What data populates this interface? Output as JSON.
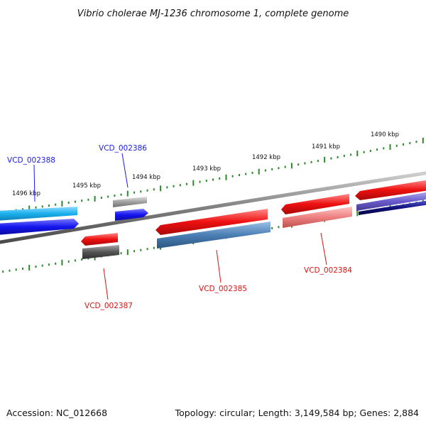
{
  "title": "Vibrio cholerae MJ-1236 chromosome 1, complete genome",
  "footer": {
    "accession": "Accession: NC_012668",
    "summary": "Topology: circular; Length: 3,149,584 bp; Genes: 2,884"
  },
  "ticks": {
    "outer": [
      "1496 kbp",
      "1495 kbp",
      "1494 kbp",
      "1493 kbp",
      "1492 kbp",
      "1491 kbp",
      "1490 kbp"
    ]
  },
  "genes": {
    "forward": [
      {
        "label": "VCD_002388",
        "color": "#1a1aee"
      },
      {
        "label": "VCD_002386",
        "color": "#1a1aee"
      }
    ],
    "reverse": [
      {
        "label": "VCD_002387",
        "color": "#dd1111"
      },
      {
        "label": "VCD_002385",
        "color": "#dd1111"
      },
      {
        "label": "VCD_002384",
        "color": "#dd1111"
      }
    ]
  },
  "colors": {
    "backbone": "#808080",
    "tick": "#2a8a2a",
    "cyan_feature": "#1ab0ee",
    "blue_feature": "#1414ee",
    "red_feature": "#ee1010",
    "steel_feature": "#4a7fb5",
    "pink_feature": "#ee8080",
    "gray_feature": "#a0a0a0",
    "dark_gray_feature": "#555555",
    "purple_feature": "#6a5acd",
    "navy_feature": "#101080"
  }
}
